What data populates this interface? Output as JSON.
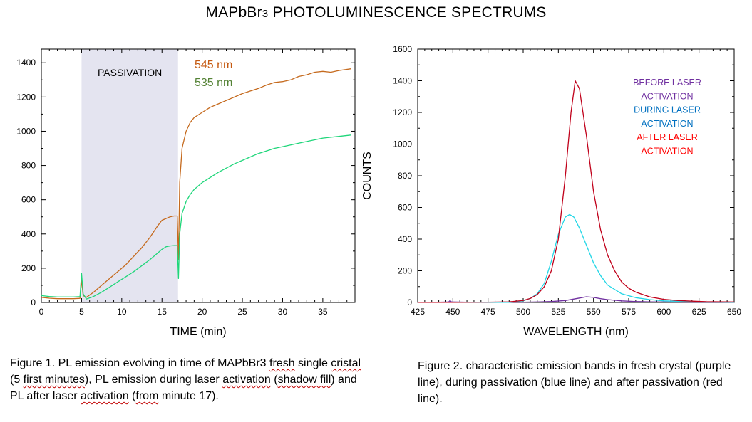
{
  "page": {
    "title_main": "MAPbBr",
    "title_sub": "3",
    "title_rest": " PHOTOLUMINESCENCE SPECTRUMS"
  },
  "chart_data": [
    {
      "type": "line",
      "id": "figure1",
      "xlabel": "TIME (min)",
      "ylabel": "",
      "xlim": [
        0,
        39
      ],
      "ylim": [
        0,
        1480
      ],
      "xticks": [
        0,
        5,
        10,
        15,
        20,
        25,
        30,
        35
      ],
      "yticks": [
        0,
        200,
        400,
        600,
        800,
        1000,
        1200,
        1400
      ],
      "shaded_region": {
        "x": [
          5,
          17
        ],
        "label": "PASSIVATION",
        "color": "#e4e4f0"
      },
      "series": [
        {
          "name": "545 nm",
          "color": "#c56a1e",
          "label_color": "#c55a11",
          "points": [
            [
              0,
              30
            ],
            [
              1,
              25
            ],
            [
              2,
              22
            ],
            [
              3,
              22
            ],
            [
              4,
              22
            ],
            [
              4.8,
              24
            ],
            [
              5,
              130
            ],
            [
              5.2,
              40
            ],
            [
              5.6,
              30
            ],
            [
              6.5,
              60
            ],
            [
              7.5,
              100
            ],
            [
              8.5,
              140
            ],
            [
              9.5,
              180
            ],
            [
              10.5,
              220
            ],
            [
              11.5,
              270
            ],
            [
              12.5,
              320
            ],
            [
              13.5,
              380
            ],
            [
              14.5,
              450
            ],
            [
              15,
              480
            ],
            [
              15.5,
              490
            ],
            [
              16,
              500
            ],
            [
              16.5,
              505
            ],
            [
              16.9,
              505
            ],
            [
              17.05,
              250
            ],
            [
              17.2,
              700
            ],
            [
              17.5,
              900
            ],
            [
              18,
              1000
            ],
            [
              18.5,
              1050
            ],
            [
              19,
              1080
            ],
            [
              20,
              1110
            ],
            [
              21,
              1140
            ],
            [
              22,
              1160
            ],
            [
              23,
              1180
            ],
            [
              24,
              1200
            ],
            [
              25,
              1220
            ],
            [
              26,
              1235
            ],
            [
              27,
              1250
            ],
            [
              28,
              1270
            ],
            [
              29,
              1285
            ],
            [
              30,
              1290
            ],
            [
              31,
              1300
            ],
            [
              32,
              1320
            ],
            [
              33,
              1330
            ],
            [
              34,
              1345
            ],
            [
              35,
              1350
            ],
            [
              36,
              1345
            ],
            [
              37,
              1355
            ],
            [
              38.5,
              1365
            ]
          ]
        },
        {
          "name": "535 nm",
          "color": "#1fd67a",
          "label_color": "#548235",
          "points": [
            [
              0,
              40
            ],
            [
              1,
              35
            ],
            [
              2,
              32
            ],
            [
              3,
              32
            ],
            [
              4,
              32
            ],
            [
              4.8,
              34
            ],
            [
              5,
              170
            ],
            [
              5.2,
              50
            ],
            [
              5.6,
              20
            ],
            [
              6.5,
              35
            ],
            [
              7.5,
              60
            ],
            [
              8.5,
              90
            ],
            [
              9.5,
              120
            ],
            [
              10.5,
              150
            ],
            [
              11.5,
              180
            ],
            [
              12.5,
              215
            ],
            [
              13.5,
              250
            ],
            [
              14.5,
              290
            ],
            [
              15,
              310
            ],
            [
              15.5,
              325
            ],
            [
              16,
              330
            ],
            [
              16.5,
              332
            ],
            [
              16.9,
              332
            ],
            [
              17.05,
              140
            ],
            [
              17.2,
              400
            ],
            [
              17.5,
              520
            ],
            [
              18,
              590
            ],
            [
              18.5,
              630
            ],
            [
              19,
              660
            ],
            [
              20,
              700
            ],
            [
              21,
              730
            ],
            [
              22,
              760
            ],
            [
              23,
              785
            ],
            [
              24,
              810
            ],
            [
              25,
              830
            ],
            [
              26,
              850
            ],
            [
              27,
              870
            ],
            [
              28,
              885
            ],
            [
              29,
              900
            ],
            [
              30,
              910
            ],
            [
              31,
              920
            ],
            [
              32,
              930
            ],
            [
              33,
              940
            ],
            [
              34,
              950
            ],
            [
              35,
              960
            ],
            [
              36,
              965
            ],
            [
              37,
              970
            ],
            [
              38.5,
              978
            ]
          ]
        }
      ]
    },
    {
      "type": "line",
      "id": "figure2",
      "xlabel": "WAVELENGTH (nm)",
      "ylabel": "COUNTS",
      "xlim": [
        425,
        650
      ],
      "ylim": [
        0,
        1600
      ],
      "xticks": [
        425,
        450,
        475,
        500,
        525,
        550,
        575,
        600,
        625,
        650
      ],
      "yticks": [
        0,
        200,
        400,
        600,
        800,
        1000,
        1200,
        1400,
        1600
      ],
      "legend": [
        {
          "lines": [
            "BEFORE LASER",
            "ACTIVATION"
          ],
          "color": "#7030a0"
        },
        {
          "lines": [
            "DURING LASER",
            "ACTIVATION"
          ],
          "color": "#0070c0"
        },
        {
          "lines": [
            "AFTER LASER",
            "ACTIVATION"
          ],
          "color": "#ff0000"
        }
      ],
      "series": [
        {
          "name": "BEFORE LASER ACTIVATION",
          "color": "#7030a0",
          "points": [
            [
              425,
              2
            ],
            [
              440,
              2
            ],
            [
              447,
              3
            ],
            [
              448,
              12
            ],
            [
              449,
              3
            ],
            [
              460,
              2
            ],
            [
              480,
              2
            ],
            [
              500,
              2
            ],
            [
              510,
              3
            ],
            [
              520,
              6
            ],
            [
              530,
              12
            ],
            [
              540,
              28
            ],
            [
              545,
              36
            ],
            [
              550,
              32
            ],
            [
              555,
              24
            ],
            [
              560,
              18
            ],
            [
              570,
              10
            ],
            [
              580,
              6
            ],
            [
              590,
              4
            ],
            [
              600,
              3
            ],
            [
              620,
              2
            ],
            [
              650,
              2
            ]
          ]
        },
        {
          "name": "DURING LASER ACTIVATION",
          "color": "#22d6e6",
          "points": [
            [
              425,
              1
            ],
            [
              450,
              1
            ],
            [
              475,
              1
            ],
            [
              490,
              1
            ],
            [
              500,
              10
            ],
            [
              505,
              25
            ],
            [
              510,
              55
            ],
            [
              515,
              120
            ],
            [
              520,
              260
            ],
            [
              525,
              430
            ],
            [
              530,
              540
            ],
            [
              533,
              555
            ],
            [
              536,
              540
            ],
            [
              540,
              470
            ],
            [
              545,
              360
            ],
            [
              550,
              250
            ],
            [
              555,
              170
            ],
            [
              560,
              110
            ],
            [
              570,
              55
            ],
            [
              580,
              30
            ],
            [
              590,
              18
            ],
            [
              600,
              10
            ],
            [
              620,
              5
            ],
            [
              650,
              2
            ]
          ]
        },
        {
          "name": "AFTER LASER ACTIVATION",
          "color": "#c0001a",
          "points": [
            [
              425,
              1
            ],
            [
              450,
              1
            ],
            [
              475,
              2
            ],
            [
              490,
              4
            ],
            [
              500,
              12
            ],
            [
              505,
              25
            ],
            [
              510,
              50
            ],
            [
              515,
              100
            ],
            [
              520,
              200
            ],
            [
              525,
              400
            ],
            [
              530,
              800
            ],
            [
              534,
              1200
            ],
            [
              537,
              1400
            ],
            [
              540,
              1350
            ],
            [
              545,
              1050
            ],
            [
              550,
              700
            ],
            [
              555,
              460
            ],
            [
              560,
              300
            ],
            [
              565,
              200
            ],
            [
              570,
              130
            ],
            [
              575,
              90
            ],
            [
              580,
              65
            ],
            [
              590,
              35
            ],
            [
              600,
              20
            ],
            [
              610,
              12
            ],
            [
              620,
              8
            ],
            [
              630,
              5
            ],
            [
              650,
              3
            ]
          ]
        }
      ]
    }
  ],
  "captions": {
    "figure1": [
      {
        "text": "Figure 1. PL emission evolving in time of ",
        "wavy": false
      },
      {
        "text": "MAPbBr3",
        "wavy": false
      },
      {
        "text": " ",
        "wavy": false
      },
      {
        "text": "fresh",
        "wavy": true
      },
      {
        "text": " single ",
        "wavy": false
      },
      {
        "text": "cristal",
        "wavy": true
      },
      {
        "text": " (5 ",
        "wavy": false
      },
      {
        "text": "first minutes",
        "wavy": true
      },
      {
        "text": "), PL emission during laser ",
        "wavy": false
      },
      {
        "text": "activation",
        "wavy": true
      },
      {
        "text": " (",
        "wavy": false
      },
      {
        "text": "shadow fill",
        "wavy": true
      },
      {
        "text": ") and PL after laser ",
        "wavy": false
      },
      {
        "text": "activation",
        "wavy": true
      },
      {
        "text": " (",
        "wavy": false
      },
      {
        "text": "from",
        "wavy": true
      },
      {
        "text": " minute 17).",
        "wavy": false
      }
    ],
    "figure2": "Figure 2. characteristic emission bands in fresh crystal (purple line), during passivation (blue line) and after passivation (red line)."
  }
}
